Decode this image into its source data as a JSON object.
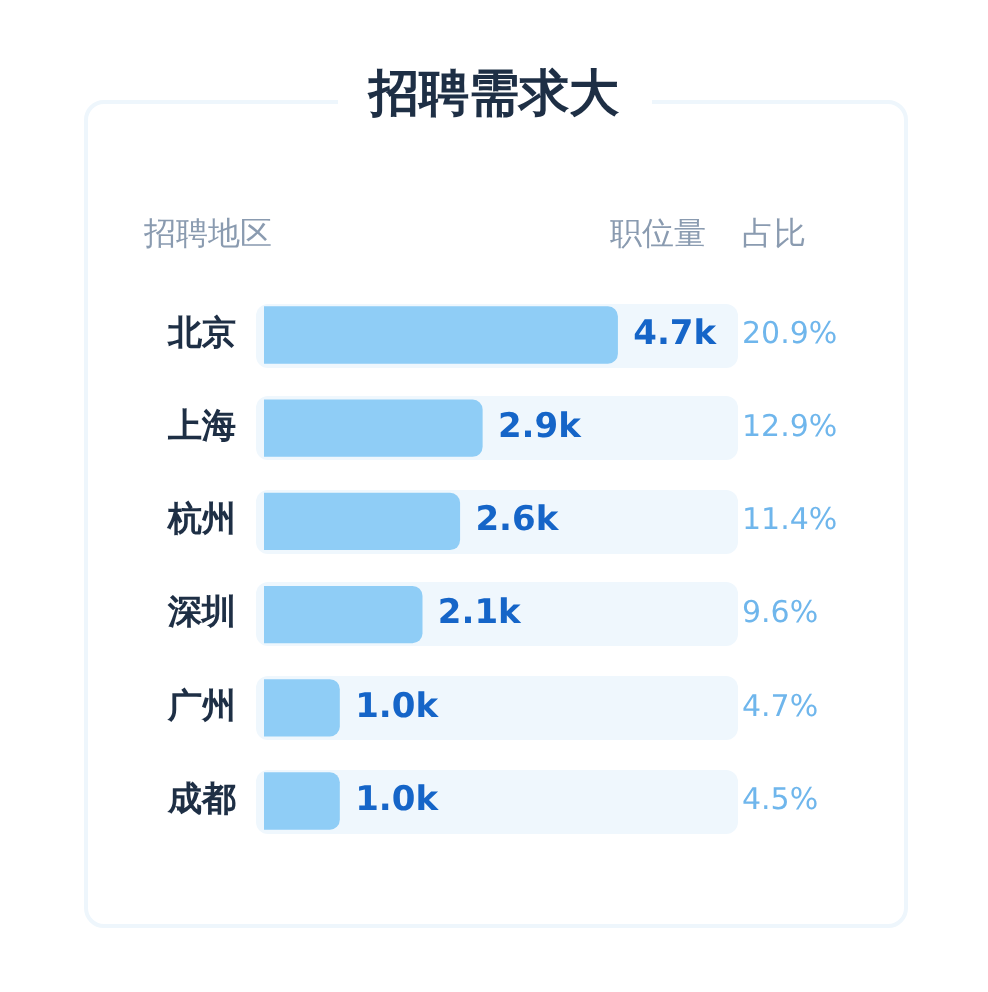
{
  "chart_data": {
    "type": "bar",
    "orientation": "horizontal",
    "title": "招聘需求大",
    "ylabel": "招聘地区",
    "xlabel": "职位量",
    "categories": [
      "北京",
      "上海",
      "杭州",
      "深圳",
      "广州",
      "成都"
    ],
    "values": [
      4.7,
      2.9,
      2.6,
      2.1,
      1.0,
      1.0
    ],
    "value_labels": [
      "4.7k",
      "2.9k",
      "2.6k",
      "2.1k",
      "1.0k",
      "1.0k"
    ],
    "color": "#8fcdf6",
    "xlim": [
      0,
      6.2
    ],
    "tick_labels": "y",
    "grid": false,
    "legend": false,
    "annotations": [
      "占比",
      "20.9%",
      "12.9%",
      "11.4%",
      "9.6%",
      "4.7%",
      "4.5%"
    ]
  }
}
